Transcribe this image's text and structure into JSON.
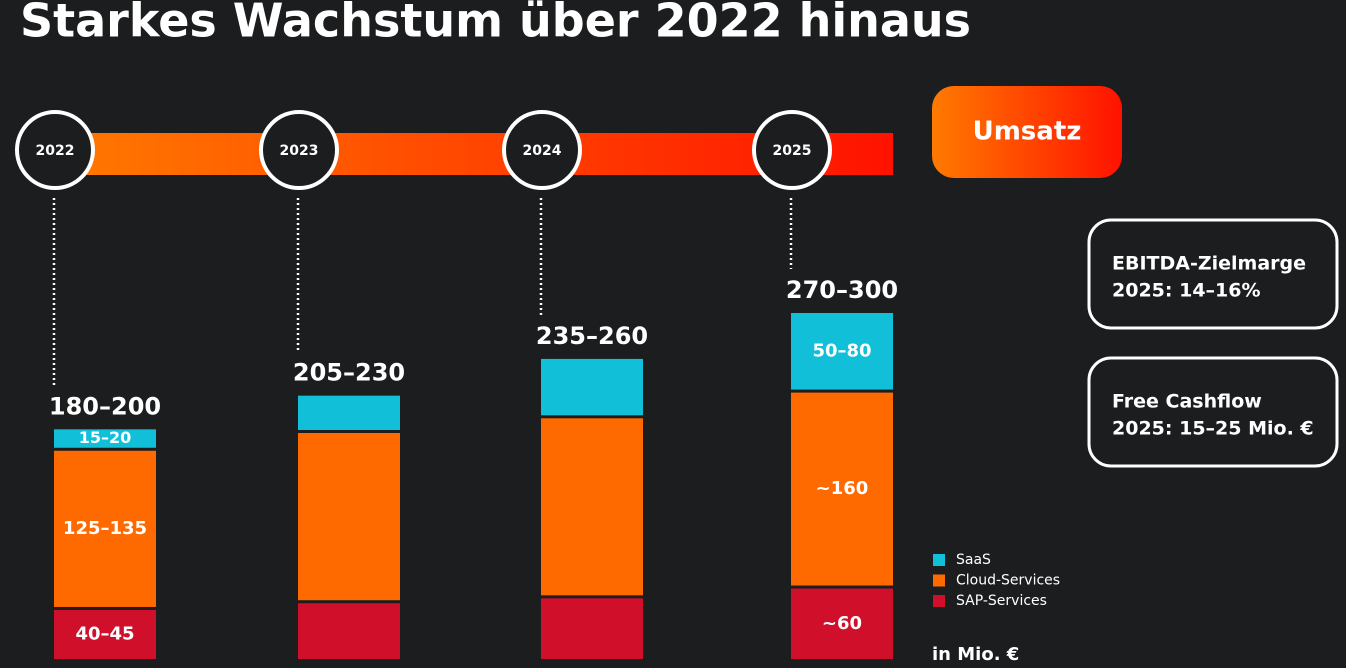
{
  "title": "Starkes Wachstum über 2022 hinaus",
  "chart_data": {
    "type": "stacked-bar",
    "categories": [
      "2022",
      "2023",
      "2024",
      "2025"
    ],
    "series": [
      {
        "name": "SAP-Services",
        "color": "#d0102b",
        "values": [
          42.5,
          48,
          52,
          60
        ],
        "value_labels": [
          "40–45",
          null,
          null,
          "~60"
        ]
      },
      {
        "name": "Cloud-Services",
        "color": "#ff6a00",
        "values": [
          130,
          139,
          147,
          160
        ],
        "value_labels": [
          "125–135",
          null,
          null,
          "~160"
        ]
      },
      {
        "name": "SaaS",
        "color": "#12bfd8",
        "values": [
          17.5,
          30.5,
          48.5,
          65
        ],
        "value_labels": [
          "15–20",
          null,
          null,
          "50–80"
        ]
      }
    ],
    "totals": [
      190,
      217.5,
      247.5,
      285
    ],
    "total_labels": [
      "180–200",
      "205–230",
      "235–260",
      "270–300"
    ],
    "unit": "in Mio. €",
    "legend": "right"
  },
  "timeline_label": "Umsatz",
  "kpis": [
    {
      "title": "EBITDA-Zielmarge",
      "value": "2025: 14–16%"
    },
    {
      "title": "Free Cashflow",
      "value": "2025: 15–25 Mio. €"
    }
  ]
}
